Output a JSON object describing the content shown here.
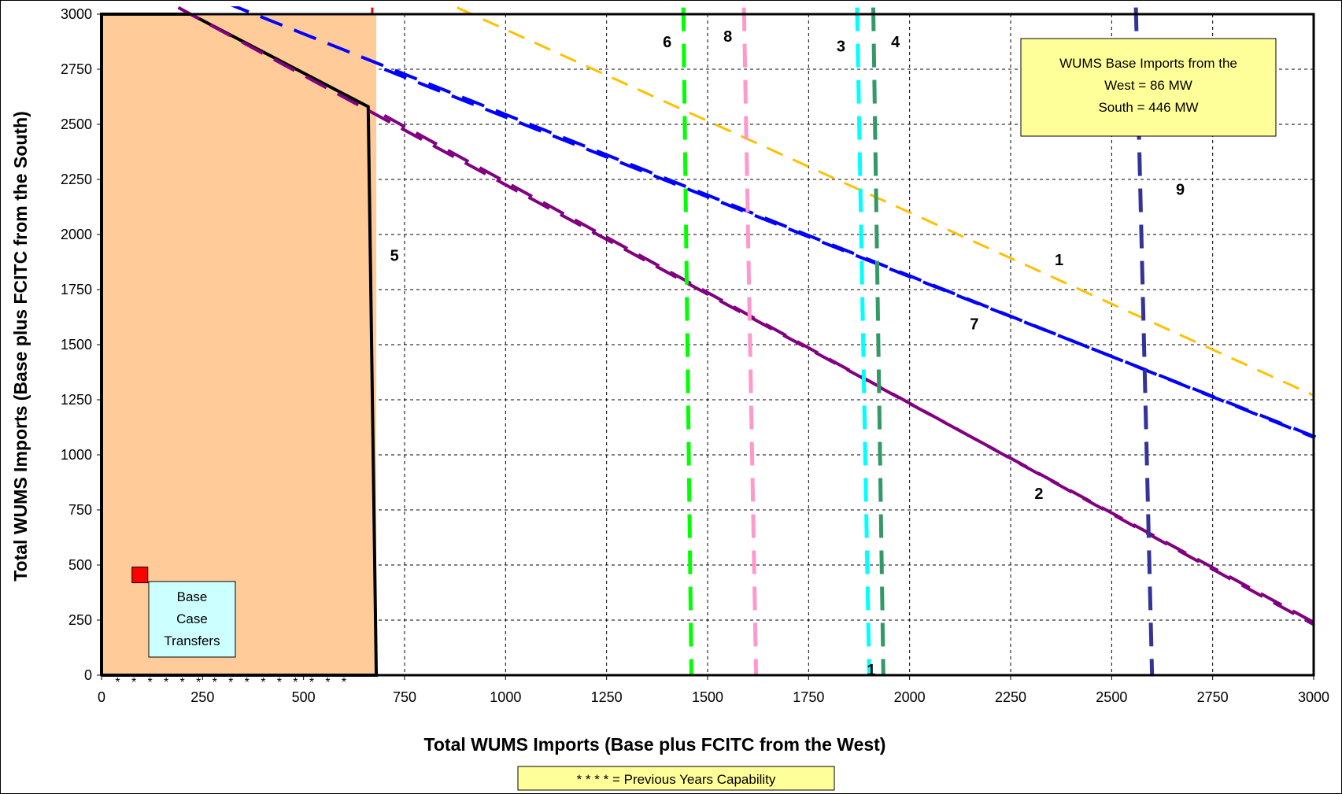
{
  "chart_data": {
    "type": "line",
    "xlabel": "Total WUMS Imports (Base plus FCITC from the West)",
    "ylabel": "Total WUMS Imports (Base plus FCITC from the South)",
    "xlim": [
      0,
      3000
    ],
    "ylim": [
      0,
      3000
    ],
    "x_ticks": [
      "0",
      "250",
      "500",
      "750",
      "1000",
      "1250",
      "1500",
      "1750",
      "2000",
      "2250",
      "2500",
      "2750",
      "3000"
    ],
    "y_ticks": [
      "0",
      "250",
      "500",
      "750",
      "1000",
      "1250",
      "1500",
      "1750",
      "2000",
      "2250",
      "2500",
      "2750",
      "3000"
    ],
    "grid": true,
    "series": [
      {
        "name": "1",
        "color": "#FFC000",
        "dash": "dash",
        "width": 3,
        "points": [
          [
            880,
            3030
          ],
          [
            3000,
            1270
          ]
        ]
      },
      {
        "name": "2",
        "color": "#800080",
        "dash": "longdash",
        "width": 4,
        "points": [
          [
            190,
            3030
          ],
          [
            3000,
            240
          ]
        ]
      },
      {
        "name": "2",
        "color": "#800080",
        "dash": "longdash",
        "width": 4,
        "points": [
          [
            700,
            2540
          ],
          [
            3000,
            230
          ]
        ]
      },
      {
        "name": "7",
        "color": "#0000FF",
        "dash": "longdash",
        "width": 4,
        "points": [
          [
            310,
            3050
          ],
          [
            3000,
            1080
          ]
        ]
      },
      {
        "name": "7",
        "color": "#0000FF",
        "dash": "longdash",
        "width": 4,
        "points": [
          [
            700,
            2750
          ],
          [
            3020,
            1070
          ]
        ]
      },
      {
        "name": "6",
        "color": "#00FF00",
        "dash": "longdash",
        "width": 5,
        "points": [
          [
            1440,
            3030
          ],
          [
            1460,
            0
          ]
        ]
      },
      {
        "name": "8",
        "color": "#FF99CC",
        "dash": "longdash",
        "width": 5,
        "points": [
          [
            1590,
            3030
          ],
          [
            1620,
            0
          ]
        ]
      },
      {
        "name": "3",
        "color": "#00FFFF",
        "dash": "longdash",
        "width": 5,
        "points": [
          [
            1870,
            3030
          ],
          [
            1900,
            0
          ]
        ]
      },
      {
        "name": "4",
        "color": "#339966",
        "dash": "longdash",
        "width": 5,
        "points": [
          [
            1910,
            3030
          ],
          [
            1935,
            0
          ]
        ]
      },
      {
        "name": "9",
        "color": "#333399",
        "dash": "longdash",
        "width": 5,
        "points": [
          [
            2560,
            3030
          ],
          [
            2600,
            0
          ]
        ]
      },
      {
        "name": "5",
        "color": "#FF0000",
        "dash": "solid",
        "width": 3,
        "points": [
          [
            670,
            3030
          ],
          [
            670,
            3000
          ]
        ]
      }
    ],
    "boundary": {
      "fill": "#FFCC99",
      "fill_area": [
        [
          0,
          0
        ],
        [
          0,
          3000
        ],
        [
          680,
          3000
        ],
        [
          680,
          0
        ]
      ],
      "outline": [
        [
          0,
          0
        ],
        [
          0,
          3000
        ],
        [
          220,
          3000
        ],
        [
          660,
          2580
        ],
        [
          680,
          0
        ],
        [
          0,
          0
        ]
      ],
      "previous_years_points": [
        [
          40,
          0
        ],
        [
          80,
          0
        ],
        [
          120,
          0
        ],
        [
          160,
          0
        ],
        [
          200,
          0
        ],
        [
          240,
          0
        ],
        [
          280,
          0
        ],
        [
          320,
          0
        ],
        [
          360,
          0
        ],
        [
          400,
          0
        ],
        [
          440,
          0
        ],
        [
          480,
          0
        ],
        [
          520,
          0
        ],
        [
          560,
          0
        ],
        [
          600,
          0
        ]
      ]
    },
    "base_case_point": {
      "x": 95,
      "y": 455,
      "color": "#FF0000"
    },
    "line_labels": [
      {
        "text": "1",
        "x": 2370,
        "y": 1860
      },
      {
        "text": "2",
        "x": 2320,
        "y": 800
      },
      {
        "text": "3",
        "x": 1830,
        "y": 2830
      },
      {
        "text": "4",
        "x": 1965,
        "y": 2850
      },
      {
        "text": "5",
        "x": 725,
        "y": 1880
      },
      {
        "text": "6",
        "x": 1400,
        "y": 2850
      },
      {
        "text": "7",
        "x": 2160,
        "y": 1570
      },
      {
        "text": "8",
        "x": 1550,
        "y": 2875
      },
      {
        "text": "9",
        "x": 2670,
        "y": 2180
      },
      {
        "text": "1",
        "x": 1905,
        "y": 0
      }
    ],
    "annotations": {
      "base_imports": [
        "WUMS Base Imports from the",
        "West = 86 MW",
        "South = 446 MW"
      ],
      "base_case": [
        "Base",
        "Case",
        "Transfers"
      ],
      "legend_note": "* * * * = Previous Years Capability"
    }
  }
}
